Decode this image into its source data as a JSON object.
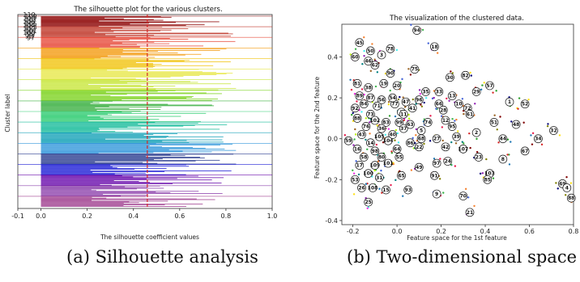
{
  "chart_data": [
    {
      "type": "bar",
      "orientation": "horizontal",
      "title": "The silhouette plot for the various clusters.",
      "xlabel": "The silhouette coefficient values",
      "ylabel": "Cluster label",
      "xlim": [
        -0.1,
        1.0
      ],
      "xticks": [
        "-0.1",
        "0.0",
        "0.2",
        "0.4",
        "0.6",
        "0.8",
        "1.0"
      ],
      "xtick_values": [
        -0.1,
        0.0,
        0.2,
        0.4,
        0.6,
        0.8,
        1.0
      ],
      "average_silhouette_line": 0.46,
      "cluster_labels_top": [
        "110",
        "109",
        "108",
        "107",
        "106",
        "105",
        "104",
        "103",
        "102",
        "101",
        "100",
        "99",
        "98",
        "97"
      ],
      "color_bands": [
        "#8b0000",
        "#c0392b",
        "#e74c3c",
        "#f39c12",
        "#f1c40f",
        "#e8e84a",
        "#c8e63c",
        "#7ed321",
        "#3cb043",
        "#2ecc71",
        "#1abc9c",
        "#17a2b8",
        "#3498db",
        "#2c3e90",
        "#1f1fd6",
        "#6a0dad",
        "#8e44ad",
        "#a04090"
      ],
      "max_value": 0.96,
      "grid": false
    },
    {
      "type": "scatter",
      "title": "The visualization of the clustered data.",
      "xlabel": "Feature space for the 1st feature",
      "ylabel": "Feature space for the 2nd feature",
      "xlim": [
        -0.25,
        0.8
      ],
      "ylim": [
        -0.42,
        0.56
      ],
      "xticks": [
        "-0.2",
        "0.0",
        "0.2",
        "0.4",
        "0.6",
        "0.8"
      ],
      "xtick_values": [
        -0.2,
        0.0,
        0.2,
        0.4,
        0.6,
        0.8
      ],
      "yticks": [
        "0.4",
        "0.2",
        "0.0",
        "-0.2",
        "-0.4"
      ],
      "ytick_values": [
        0.4,
        0.2,
        0.0,
        -0.2,
        -0.4
      ],
      "grid": false,
      "centers": [
        {
          "label": "94",
          "x": 0.09,
          "y": 0.53
        },
        {
          "label": "45",
          "x": -0.17,
          "y": 0.47
        },
        {
          "label": "18",
          "x": 0.17,
          "y": 0.45
        },
        {
          "label": "50",
          "x": -0.12,
          "y": 0.43
        },
        {
          "label": "3",
          "x": -0.07,
          "y": 0.41
        },
        {
          "label": "78",
          "x": -0.03,
          "y": 0.44
        },
        {
          "label": "60",
          "x": -0.19,
          "y": 0.4
        },
        {
          "label": "46",
          "x": -0.13,
          "y": 0.38
        },
        {
          "label": "62",
          "x": -0.1,
          "y": 0.36
        },
        {
          "label": "75",
          "x": 0.08,
          "y": 0.34
        },
        {
          "label": "30",
          "x": 0.24,
          "y": 0.3
        },
        {
          "label": "82",
          "x": 0.31,
          "y": 0.31
        },
        {
          "label": "90",
          "x": -0.03,
          "y": 0.32
        },
        {
          "label": "57",
          "x": 0.42,
          "y": 0.26
        },
        {
          "label": "29",
          "x": 0.36,
          "y": 0.23
        },
        {
          "label": "81",
          "x": -0.18,
          "y": 0.27
        },
        {
          "label": "38",
          "x": -0.13,
          "y": 0.25
        },
        {
          "label": "19",
          "x": -0.06,
          "y": 0.27
        },
        {
          "label": "20",
          "x": 0.0,
          "y": 0.26
        },
        {
          "label": "33",
          "x": 0.19,
          "y": 0.23
        },
        {
          "label": "13",
          "x": 0.25,
          "y": 0.21
        },
        {
          "label": "35",
          "x": 0.13,
          "y": 0.23
        },
        {
          "label": "89",
          "x": -0.17,
          "y": 0.21
        },
        {
          "label": "87",
          "x": -0.12,
          "y": 0.2
        },
        {
          "label": "56",
          "x": -0.07,
          "y": 0.19
        },
        {
          "label": "77",
          "x": -0.01,
          "y": 0.17
        },
        {
          "label": "47",
          "x": 0.04,
          "y": 0.18
        },
        {
          "label": "96",
          "x": 0.1,
          "y": 0.19
        },
        {
          "label": "54",
          "x": -0.02,
          "y": 0.2
        },
        {
          "label": "1",
          "x": 0.51,
          "y": 0.18
        },
        {
          "label": "52",
          "x": 0.58,
          "y": 0.17
        },
        {
          "label": "7",
          "x": 0.02,
          "y": 0.13
        },
        {
          "label": "84",
          "x": -0.15,
          "y": 0.17
        },
        {
          "label": "71",
          "x": -0.09,
          "y": 0.16
        },
        {
          "label": "66",
          "x": 0.19,
          "y": 0.17
        },
        {
          "label": "28",
          "x": 0.21,
          "y": 0.14
        },
        {
          "label": "10",
          "x": 0.28,
          "y": 0.17
        },
        {
          "label": "72",
          "x": 0.32,
          "y": 0.15
        },
        {
          "label": "92",
          "x": -0.19,
          "y": 0.15
        },
        {
          "label": "73",
          "x": -0.12,
          "y": 0.12
        },
        {
          "label": "11",
          "x": 0.03,
          "y": 0.12
        },
        {
          "label": "41",
          "x": 0.07,
          "y": 0.15
        },
        {
          "label": "61",
          "x": 0.33,
          "y": 0.12
        },
        {
          "label": "51",
          "x": 0.44,
          "y": 0.08
        },
        {
          "label": "48",
          "x": 0.54,
          "y": 0.07
        },
        {
          "label": "32",
          "x": 0.71,
          "y": 0.04
        },
        {
          "label": "88",
          "x": -0.18,
          "y": 0.1
        },
        {
          "label": "102",
          "x": -0.1,
          "y": 0.09
        },
        {
          "label": "83",
          "x": -0.05,
          "y": 0.08
        },
        {
          "label": "99",
          "x": 0.01,
          "y": 0.08
        },
        {
          "label": "74",
          "x": 0.14,
          "y": 0.08
        },
        {
          "label": "12",
          "x": 0.22,
          "y": 0.09
        },
        {
          "label": "95",
          "x": 0.25,
          "y": 0.06
        },
        {
          "label": "5",
          "x": 0.11,
          "y": 0.04
        },
        {
          "label": "76",
          "x": -0.14,
          "y": 0.06
        },
        {
          "label": "36",
          "x": -0.07,
          "y": 0.05
        },
        {
          "label": "37",
          "x": 0.03,
          "y": 0.05
        },
        {
          "label": "63",
          "x": 0.06,
          "y": 0.07
        },
        {
          "label": "43",
          "x": -0.16,
          "y": 0.02
        },
        {
          "label": "105",
          "x": -0.08,
          "y": 0.01
        },
        {
          "label": "40",
          "x": -0.02,
          "y": 0.02
        },
        {
          "label": "68",
          "x": 0.11,
          "y": 0.0
        },
        {
          "label": "27",
          "x": 0.18,
          "y": 0.0
        },
        {
          "label": "39",
          "x": 0.27,
          "y": 0.01
        },
        {
          "label": "2",
          "x": 0.36,
          "y": 0.03
        },
        {
          "label": "44",
          "x": 0.48,
          "y": 0.0
        },
        {
          "label": "34",
          "x": 0.64,
          "y": 0.0
        },
        {
          "label": "59",
          "x": -0.22,
          "y": -0.01
        },
        {
          "label": "14",
          "x": -0.12,
          "y": -0.02
        },
        {
          "label": "104",
          "x": -0.04,
          "y": -0.01
        },
        {
          "label": "86",
          "x": 0.06,
          "y": -0.02
        },
        {
          "label": "16",
          "x": -0.18,
          "y": -0.05
        },
        {
          "label": "98",
          "x": -0.1,
          "y": -0.06
        },
        {
          "label": "64",
          "x": 0.0,
          "y": -0.05
        },
        {
          "label": "22",
          "x": 0.1,
          "y": -0.04
        },
        {
          "label": "42",
          "x": 0.22,
          "y": -0.04
        },
        {
          "label": "107",
          "x": 0.3,
          "y": -0.05
        },
        {
          "label": "67",
          "x": 0.58,
          "y": -0.06
        },
        {
          "label": "23",
          "x": 0.37,
          "y": -0.09
        },
        {
          "label": "58",
          "x": -0.15,
          "y": -0.09
        },
        {
          "label": "80",
          "x": -0.07,
          "y": -0.09
        },
        {
          "label": "55",
          "x": 0.01,
          "y": -0.09
        },
        {
          "label": "8",
          "x": 0.48,
          "y": -0.1
        },
        {
          "label": "97",
          "x": 0.18,
          "y": -0.12
        },
        {
          "label": "24",
          "x": 0.23,
          "y": -0.11
        },
        {
          "label": "17",
          "x": -0.17,
          "y": -0.13
        },
        {
          "label": "109",
          "x": -0.1,
          "y": -0.13
        },
        {
          "label": "101",
          "x": -0.04,
          "y": -0.12
        },
        {
          "label": "49",
          "x": 0.1,
          "y": -0.14
        },
        {
          "label": "103",
          "x": 0.42,
          "y": -0.17
        },
        {
          "label": "100",
          "x": -0.13,
          "y": -0.17
        },
        {
          "label": "53",
          "x": -0.19,
          "y": -0.2
        },
        {
          "label": "31",
          "x": -0.08,
          "y": -0.19
        },
        {
          "label": "65",
          "x": 0.02,
          "y": -0.18
        },
        {
          "label": "91",
          "x": 0.17,
          "y": -0.18
        },
        {
          "label": "69",
          "x": 0.75,
          "y": -0.22
        },
        {
          "label": "4",
          "x": 0.77,
          "y": -0.24
        },
        {
          "label": "85",
          "x": 0.41,
          "y": -0.2
        },
        {
          "label": "26",
          "x": -0.16,
          "y": -0.24
        },
        {
          "label": "108",
          "x": -0.11,
          "y": -0.24
        },
        {
          "label": "15",
          "x": -0.05,
          "y": -0.25
        },
        {
          "label": "93",
          "x": 0.05,
          "y": -0.25
        },
        {
          "label": "9",
          "x": 0.18,
          "y": -0.27
        },
        {
          "label": "70",
          "x": 0.3,
          "y": -0.28
        },
        {
          "label": "88b",
          "x": 0.79,
          "y": -0.29
        },
        {
          "label": "21",
          "x": 0.33,
          "y": -0.36
        },
        {
          "label": "25",
          "x": -0.13,
          "y": -0.31
        }
      ]
    }
  ],
  "captions": {
    "a": "(a) Silhouette analysis",
    "b": "(b) Two-dimensional space"
  }
}
